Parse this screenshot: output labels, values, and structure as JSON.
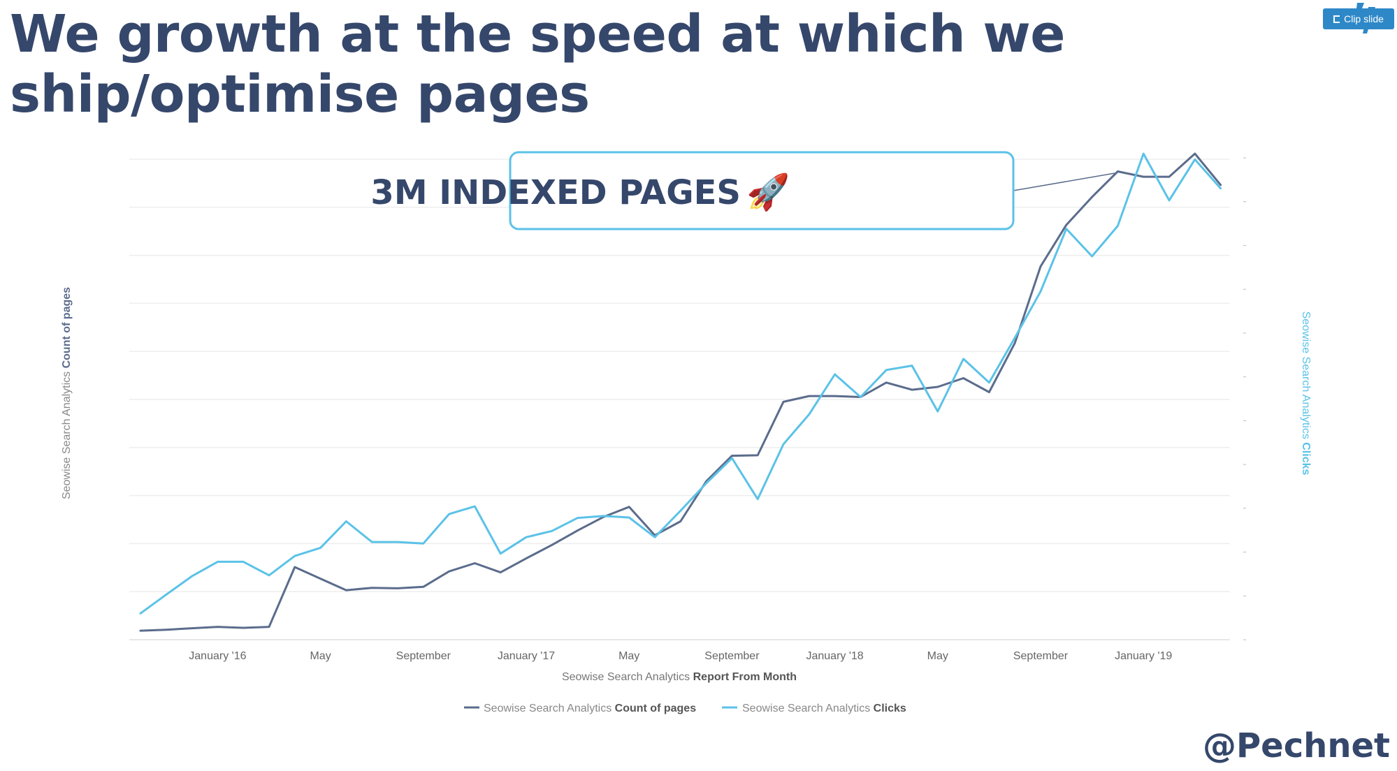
{
  "slide": {
    "title": "We growth at the speed at which we ship/optimise pages",
    "handle": "@Pechnet"
  },
  "toolbar": {
    "clip_label": "Clip slide",
    "clip_icon": "clipboard-icon"
  },
  "callout": {
    "text": "3M INDEXED PAGES",
    "emoji": "🚀"
  },
  "colors": {
    "title": "#35476b",
    "pages_series": "#5b6c8c",
    "clicks_series": "#5bc2e7",
    "grid": "#eeeeee",
    "axis_text": "#666666",
    "accent": "#2e88c8"
  },
  "chart_data": {
    "type": "line",
    "x_tick_labels": [
      "January '16",
      "May",
      "September",
      "January '17",
      "May",
      "September",
      "January '18",
      "May",
      "September",
      "January '19"
    ],
    "x_tick_indices": [
      3,
      7,
      11,
      15,
      19,
      23,
      27,
      31,
      35,
      39
    ],
    "xlabel_prefix": "Seowise Search Analytics ",
    "xlabel_bold": "Report From Month",
    "ylabel_left_prefix": "Seowise Search Analytics ",
    "ylabel_left_bold": "Count of pages",
    "ylabel_right_prefix": "Seowise Search Analytics ",
    "ylabel_right_bold": "Clicks",
    "ylim": [
      0,
      100
    ],
    "grid": true,
    "legend_position": "bottom",
    "series": [
      {
        "name_prefix": "Seowise Search Analytics ",
        "name_bold": "Count of pages",
        "axis": "left",
        "values": [
          1,
          1.2,
          1.5,
          1.8,
          1.6,
          1.8,
          14.2,
          11.8,
          9.4,
          9.9,
          9.8,
          10.1,
          13.3,
          15,
          13.1,
          16,
          18.8,
          21.8,
          24.6,
          26.7,
          20.8,
          23.7,
          32,
          37.3,
          37.4,
          48.5,
          49.7,
          49.7,
          49.5,
          52.5,
          51,
          51.6,
          53.4,
          50.5,
          60.7,
          76.6,
          85.2,
          91,
          96.3,
          95.2,
          95.2,
          100,
          93.5
        ]
      },
      {
        "name_prefix": "Seowise Search Analytics ",
        "name_bold": "Clicks",
        "axis": "right",
        "values": [
          4.6,
          8.5,
          12.3,
          15.3,
          15.3,
          12.5,
          16.5,
          18.2,
          23.7,
          19.4,
          19.4,
          19.1,
          25.2,
          26.8,
          17,
          20.4,
          21.7,
          24.4,
          24.8,
          24.5,
          20.4,
          25.9,
          31.6,
          36.8,
          28.3,
          39.7,
          45.9,
          54.2,
          49.5,
          55.1,
          56,
          46.5,
          57.4,
          52.5,
          61.8,
          71.4,
          84.4,
          78.7,
          85,
          100,
          90.3,
          98.8,
          92.8
        ]
      }
    ]
  }
}
